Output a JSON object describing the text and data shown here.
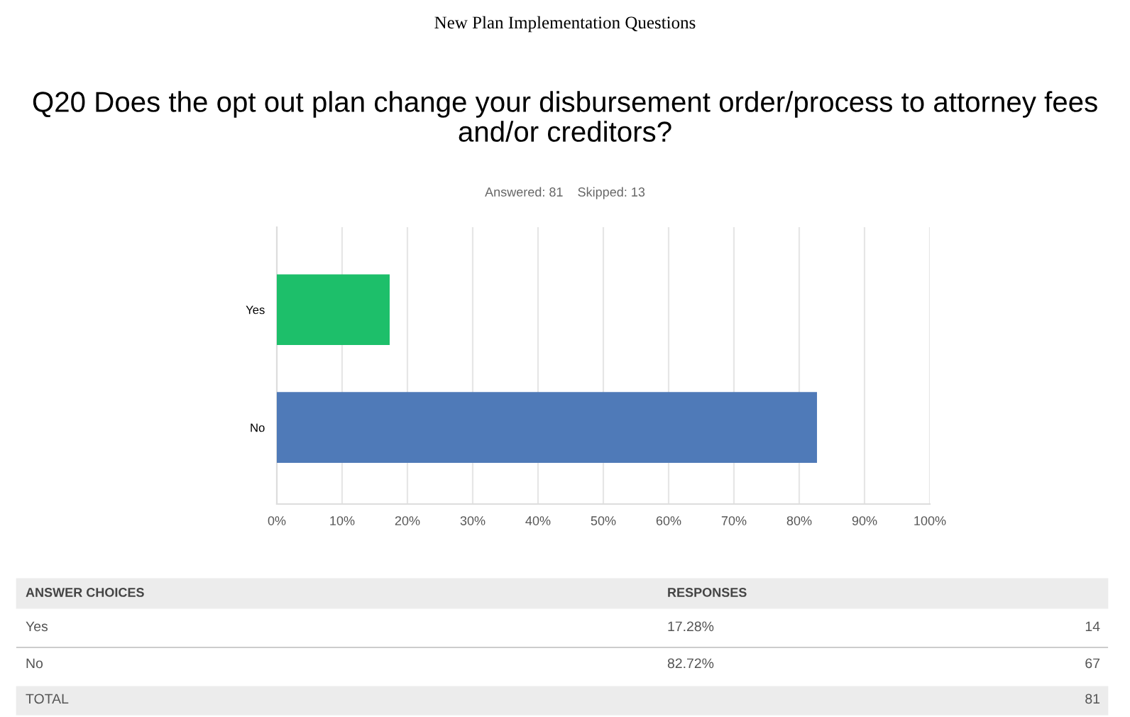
{
  "chart_data": {
    "type": "bar",
    "orientation": "horizontal",
    "title": "New Plan Implementation Questions",
    "subtitle": "Q20 Does the opt out plan change your disbursement order/process to attorney fees and/or creditors?",
    "categories": [
      "Yes",
      "No"
    ],
    "values": [
      17.28,
      82.72
    ],
    "colors": [
      "#1dbf6a",
      "#4f7ab8"
    ],
    "xlim": [
      0,
      100
    ],
    "xticks": [
      {
        "value": 0,
        "label": "0%"
      },
      {
        "value": 10,
        "label": "10%"
      },
      {
        "value": 20,
        "label": "20%"
      },
      {
        "value": 30,
        "label": "30%"
      },
      {
        "value": 40,
        "label": "40%"
      },
      {
        "value": 50,
        "label": "50%"
      },
      {
        "value": 60,
        "label": "60%"
      },
      {
        "value": 70,
        "label": "70%"
      },
      {
        "value": 80,
        "label": "80%"
      },
      {
        "value": 90,
        "label": "90%"
      },
      {
        "value": 100,
        "label": "100%"
      }
    ],
    "grid": "x",
    "annotations": [
      "Answered: 81    Skipped: 13",
      "ANSWER CHOICES",
      "RESPONSES",
      "14",
      "67",
      "TOTAL",
      "81",
      "17.28%",
      "82.72%"
    ]
  }
}
